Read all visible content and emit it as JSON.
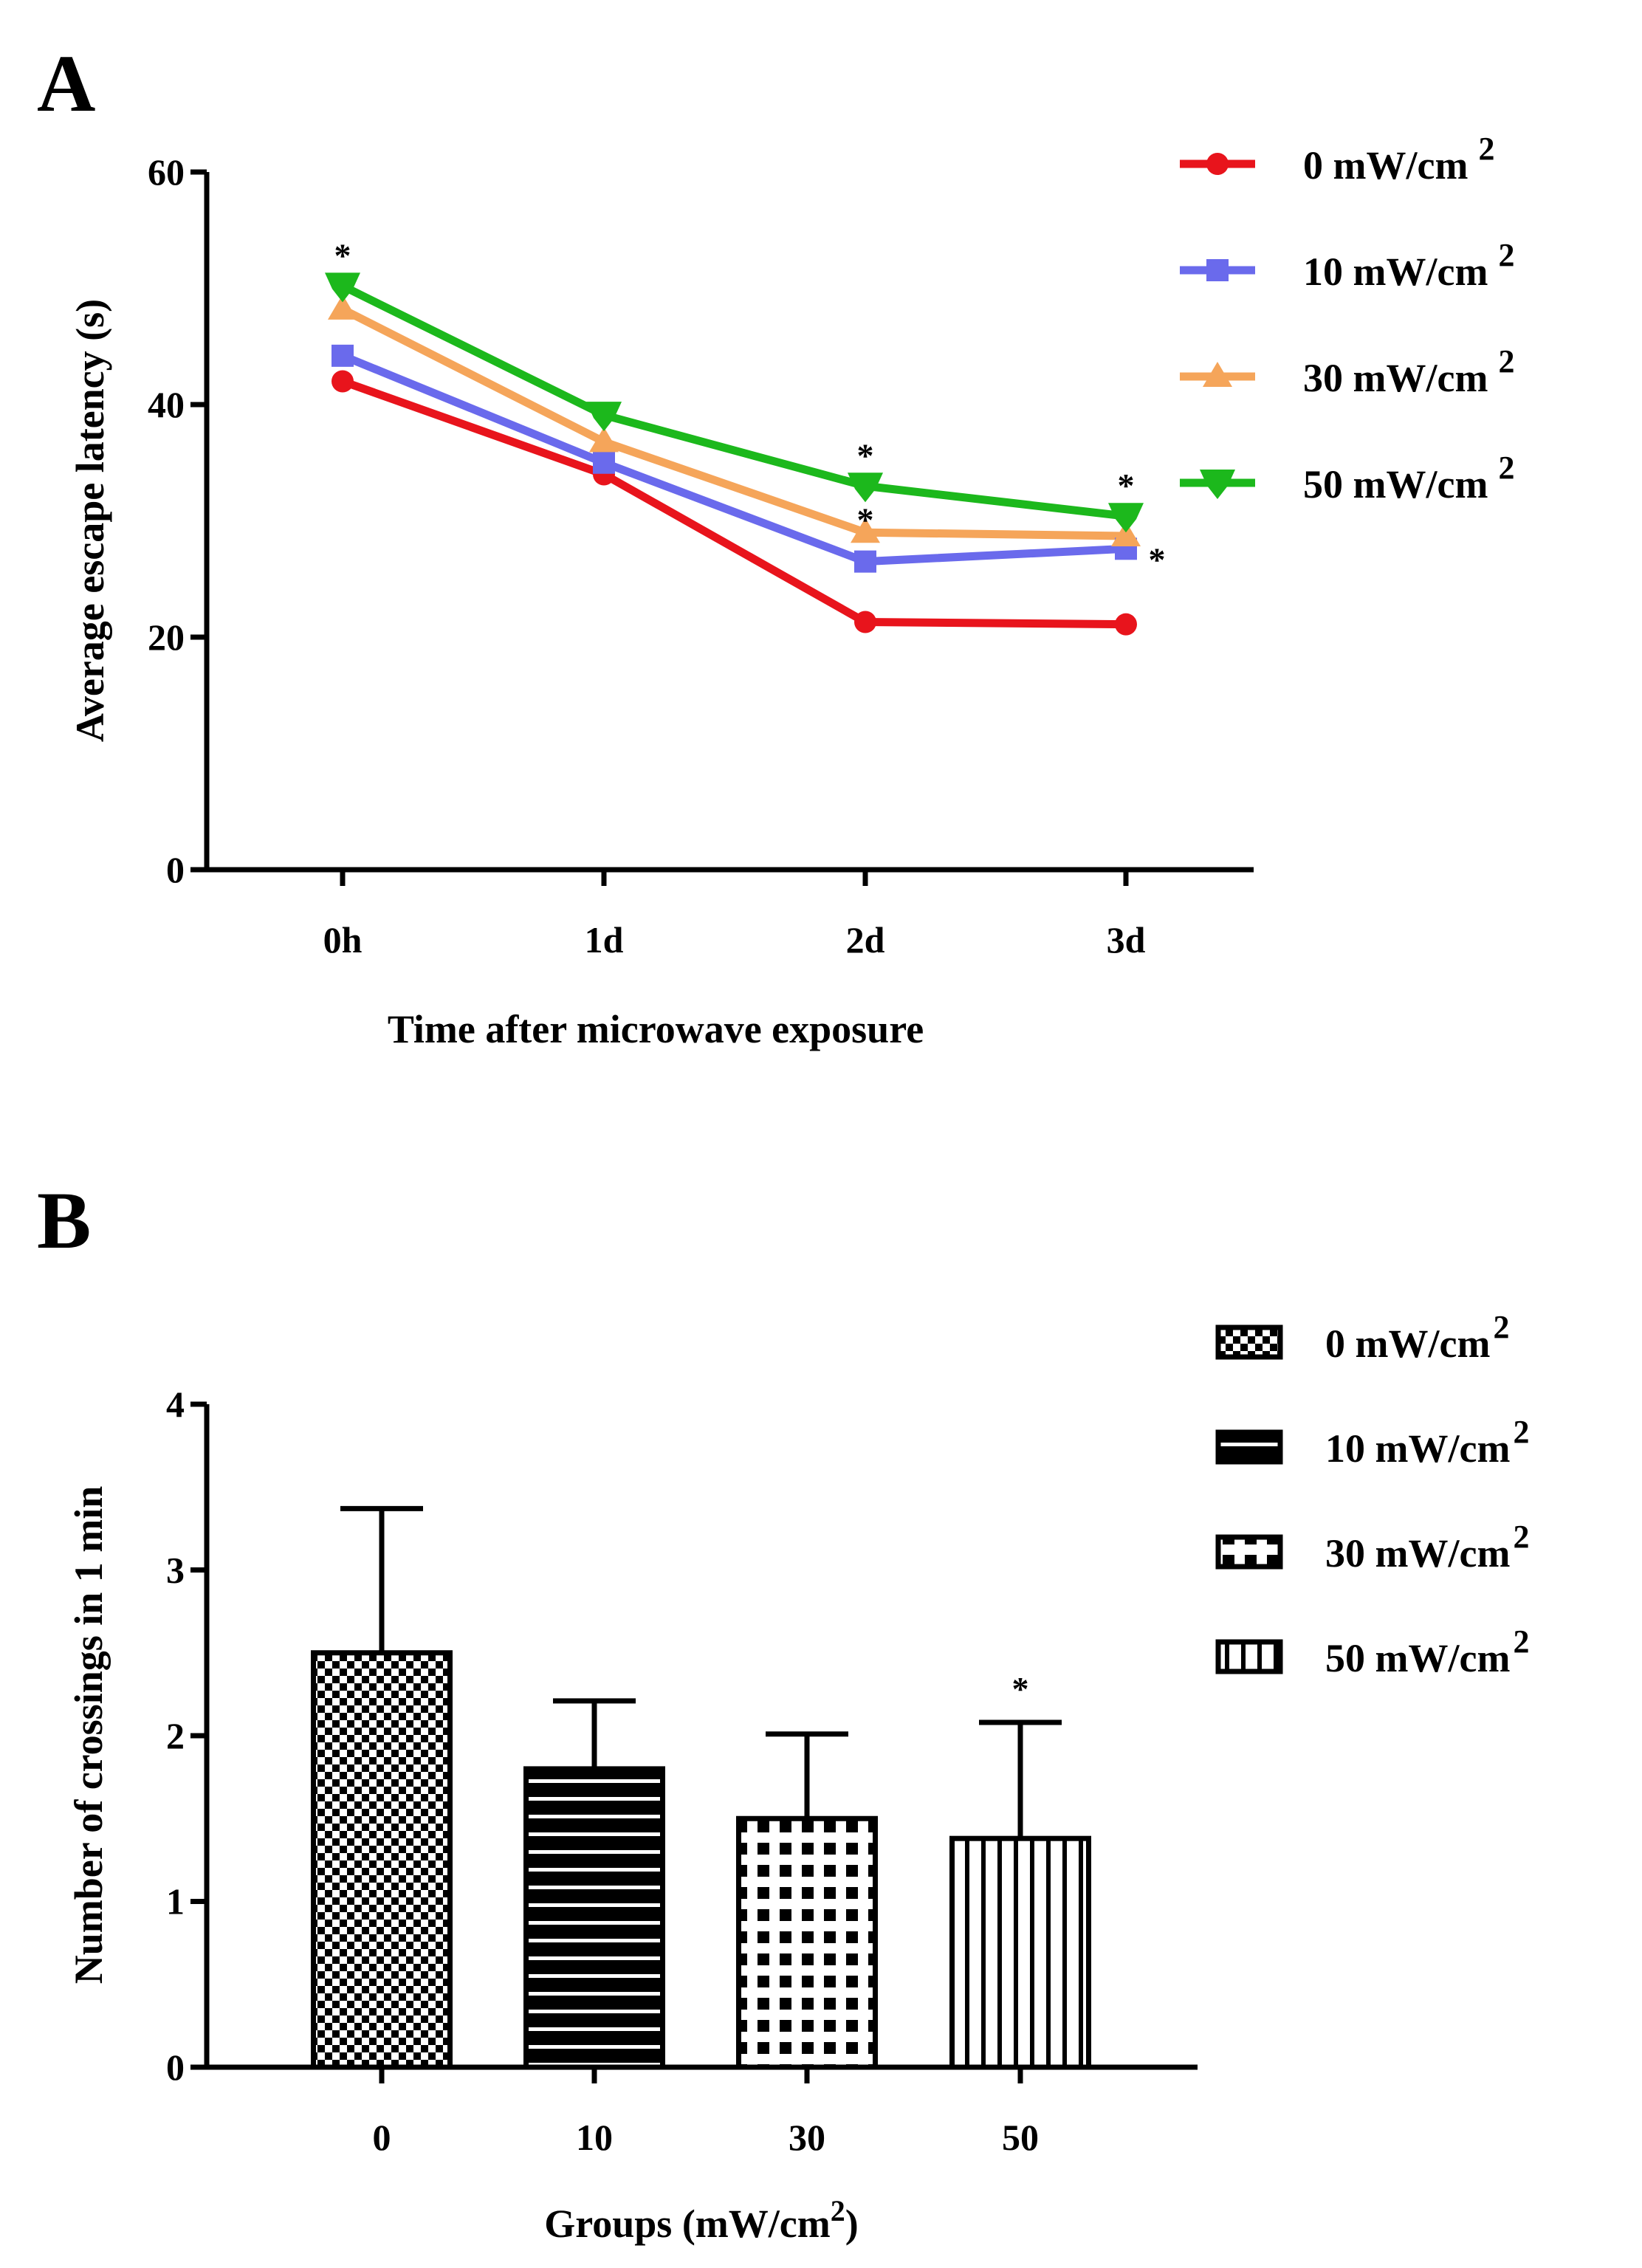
{
  "chart_data": [
    {
      "panel": "A",
      "type": "line",
      "title": "",
      "xlabel": "Time after microwave exposure",
      "ylabel": "Average escape latency (s)",
      "categories": [
        "0h",
        "1d",
        "2d",
        "3d"
      ],
      "ylim": [
        0,
        60
      ],
      "yticks": [
        "0",
        "20",
        "40",
        "60"
      ],
      "grid": false,
      "legend_position": "top-right",
      "series": [
        {
          "name": "0 mW/cm",
          "sup": "2",
          "color": "#e8141c",
          "marker": "circle",
          "values": [
            42,
            34,
            21.3,
            21.1
          ]
        },
        {
          "name": "10 mW/cm",
          "sup": "2",
          "color": "#6a6aec",
          "marker": "square",
          "values": [
            44.2,
            35,
            26.5,
            27.6
          ]
        },
        {
          "name": "30 mW/cm",
          "sup": "2",
          "color": "#f5a55a",
          "marker": "triangle",
          "values": [
            48.2,
            36.8,
            29,
            28.7
          ]
        },
        {
          "name": "50 mW/cm",
          "sup": "2",
          "color": "#1cb81c",
          "marker": "down-triangle",
          "values": [
            50.2,
            39.1,
            33,
            30.4
          ]
        }
      ],
      "significance": [
        {
          "series": 3,
          "index": 0,
          "label": "*"
        },
        {
          "series": 3,
          "index": 2,
          "label": "*"
        },
        {
          "series": 2,
          "index": 2,
          "label": "*"
        },
        {
          "series": 3,
          "index": 3,
          "label": "*"
        },
        {
          "series": 1,
          "index": 3,
          "label": "*"
        }
      ]
    },
    {
      "panel": "B",
      "type": "bar",
      "title": "",
      "xlabel": "Groups (mW/cm",
      "xlabel_sup": "2",
      "xlabel_close": ")",
      "ylabel": "Number of crossings in 1 min",
      "categories": [
        "0",
        "10",
        "30",
        "50"
      ],
      "values": [
        2.5,
        1.8,
        1.5,
        1.38
      ],
      "errors": [
        0.87,
        0.41,
        0.51,
        0.7
      ],
      "ylim": [
        0,
        4
      ],
      "yticks": [
        "0",
        "1",
        "2",
        "3",
        "4"
      ],
      "grid": false,
      "legend_position": "top-right",
      "legend": [
        {
          "name": "0 mW/cm",
          "sup": "2",
          "pattern": "checker"
        },
        {
          "name": "10 mW/cm",
          "sup": "2",
          "pattern": "hlines"
        },
        {
          "name": "30 mW/cm",
          "sup": "2",
          "pattern": "dots"
        },
        {
          "name": "50 mW/cm",
          "sup": "2",
          "pattern": "vlines"
        }
      ],
      "significance": [
        {
          "index": 3,
          "label": "*"
        }
      ]
    }
  ]
}
